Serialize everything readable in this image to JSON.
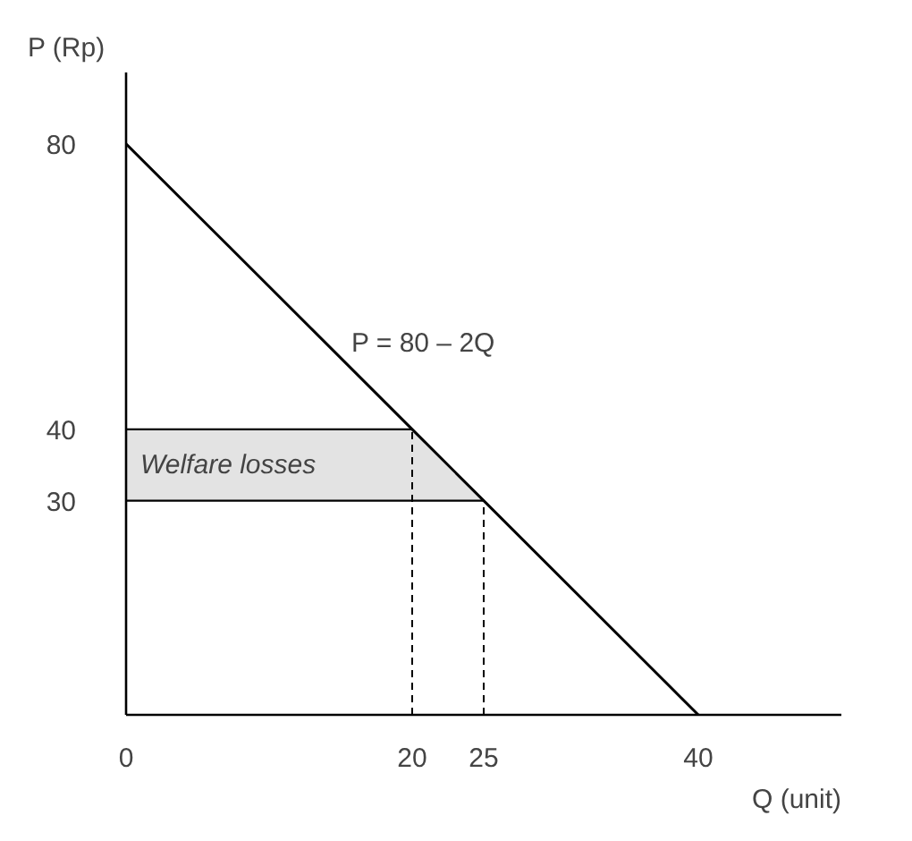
{
  "chart_data": {
    "type": "line",
    "xlabel": "Q (unit)",
    "ylabel": "P (Rp)",
    "x": [
      0,
      20,
      25,
      40
    ],
    "series": [
      {
        "color": "#000000",
        "values": [
          80,
          40,
          30,
          0
        ]
      }
    ],
    "xlim": [
      0,
      50
    ],
    "ylim": [
      0,
      90
    ],
    "xticks": [
      0,
      20,
      25,
      40
    ],
    "yticks": [
      30,
      40,
      80
    ],
    "grid": false,
    "marker": "none",
    "bands": [
      {
        "axis": "y",
        "from": 30,
        "to": 40,
        "label": "Welfare losses",
        "color": "#e3e3e3"
      }
    ],
    "ref_lines": [
      {
        "axis": "x",
        "value": 20,
        "line_style": "dashed"
      },
      {
        "axis": "x",
        "value": 25,
        "line_style": "dashed"
      }
    ],
    "annotations": [
      "P = 80 – 2Q"
    ]
  }
}
